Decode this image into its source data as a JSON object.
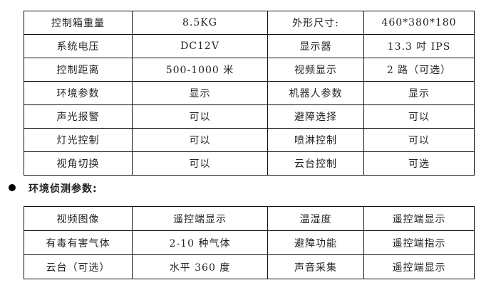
{
  "table1": [
    [
      "控制箱重量",
      "8.5KG",
      "外形尺寸:",
      "460*380*180"
    ],
    [
      "系统电压",
      "DC12V",
      "显示器",
      "13.3 吋 IPS"
    ],
    [
      "控制距离",
      "500-1000 米",
      "视频显示",
      "2 路（可选）"
    ],
    [
      "环境参数",
      "显示",
      "机器人参数",
      "显示"
    ],
    [
      "声光报警",
      "可以",
      "避障选择",
      "可以"
    ],
    [
      "灯光控制",
      "可以",
      "喷淋控制",
      "可以"
    ],
    [
      "视角切换",
      "可以",
      "云台控制",
      "可选"
    ]
  ],
  "section_heading": "环境侦测参数:",
  "table2": [
    [
      "视频图像",
      "遥控端显示",
      "温湿度",
      "遥控端显示"
    ],
    [
      "有毒有害气体",
      "2-10 种气体",
      "避障功能",
      "遥控端指示"
    ],
    [
      "云台（可选）",
      "水平 360 度",
      "声音采集",
      "遥控端显示"
    ]
  ]
}
